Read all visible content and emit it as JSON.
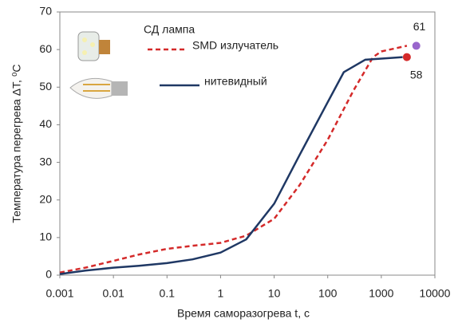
{
  "chart_data": {
    "type": "line",
    "xlabel": "Время саморазогрева t, с",
    "ylabel": "Температура перегрева ΔT, ⁰C",
    "legend_title": "СД лампа",
    "xscale": "log",
    "xlim": [
      0.001,
      10000
    ],
    "xticks": [
      0.001,
      0.01,
      0.1,
      1,
      10,
      100,
      1000,
      10000
    ],
    "ylim": [
      0,
      70
    ],
    "yticks": [
      0,
      10,
      20,
      30,
      40,
      50,
      60,
      70
    ],
    "grid": false,
    "series": [
      {
        "name": "SMD излучатель",
        "color": "#d42a2a",
        "dash": true,
        "x": [
          0.001,
          0.003,
          0.01,
          0.03,
          0.1,
          0.3,
          1,
          3,
          10,
          30,
          100,
          300,
          700,
          1000,
          3000
        ],
        "values": [
          0.7,
          2,
          3.8,
          5.5,
          7,
          7.8,
          8.6,
          10.5,
          15,
          24,
          36,
          49,
          58,
          59.5,
          61
        ]
      },
      {
        "name": "нитевидный",
        "color": "#1f3864",
        "dash": false,
        "x": [
          0.001,
          0.003,
          0.01,
          0.03,
          0.1,
          0.3,
          1,
          3,
          10,
          30,
          100,
          200,
          500,
          1000,
          2500
        ],
        "values": [
          0.3,
          1.2,
          2,
          2.5,
          3.2,
          4.2,
          6,
          9.5,
          19,
          32,
          46,
          54,
          57.3,
          57.6,
          58
        ]
      }
    ],
    "annotations": [
      {
        "text": "61",
        "x": 4500,
        "y": 61,
        "color": "#9966cc"
      },
      {
        "text": "58",
        "x": 3000,
        "y": 58,
        "color": "#d42a2a"
      }
    ]
  }
}
